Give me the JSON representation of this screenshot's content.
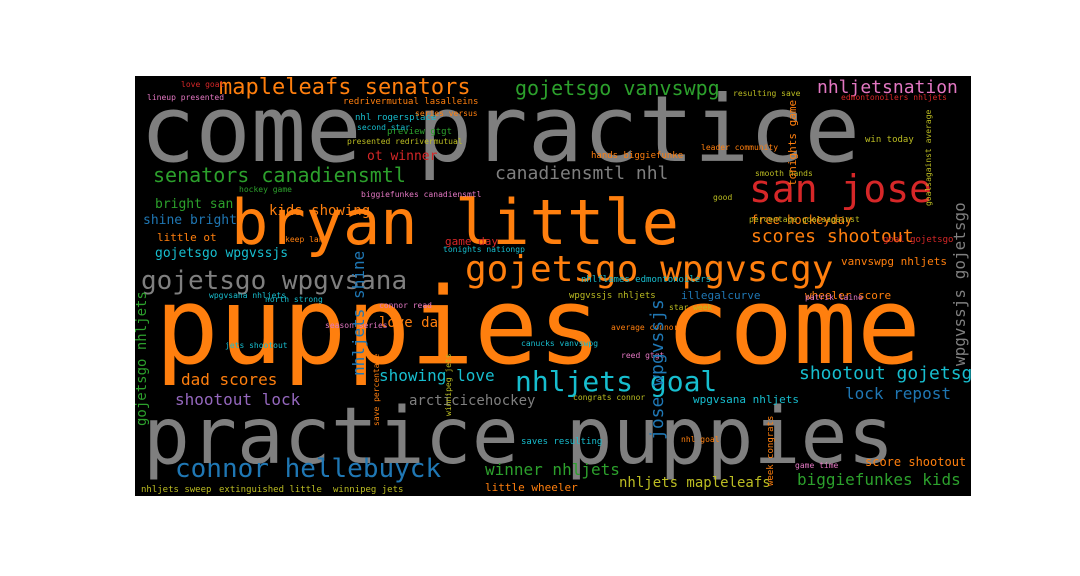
{
  "palette": {
    "gray": "#7f7f7f",
    "orange": "#ff7f0e",
    "red": "#d62728",
    "green": "#2ca02c",
    "teal": "#17becf",
    "blue": "#1f77b4",
    "pink": "#e377c2",
    "purple": "#9467bd",
    "olive": "#bcbd22",
    "brown": "#8c564b"
  },
  "words": {
    "come_practice": "come practice",
    "puppies_come": "puppies come",
    "practice_puppies": "practice puppies",
    "bryan_little": "bryan little",
    "san_jose": "san jose",
    "gojetsgo_wpgvscgy": "gojetsgo wpgvscgy",
    "mapleleafs_senators": "mapleleafs senators",
    "gojetsgo_vanvswpg": "gojetsgo vanvswpg",
    "nhljetsnation": "nhljetsnation",
    "senators_canadiensmtl": "senators canadiensmtl",
    "canadiensmtl_nhl": "canadiensmtl nhl",
    "gojetsgo_wpgvsana": "gojetsgo wpgvsana",
    "nhljets_goal": "nhljets goal",
    "connor_hellebuyck": "connor hellebuyck",
    "scores_shootout": "scores shootout",
    "kids_showing": "kids showing",
    "free_hockeyday": "free hockeyday",
    "shootout_gojetsgo": "shootout gojetsgo",
    "showing_love": "showing love",
    "love_dad": "love dad",
    "dad_scores": "dad scores",
    "shootout_lock": "shootout lock",
    "lock_repost": "lock repost",
    "winner_nhljets": "winner nhljets",
    "biggiefunkes_kids": "biggiefunkes kids",
    "nhljets_mapleleafs": "nhljets mapleleafs",
    "ot_winner": "ot winner",
    "bright_san": "bright san",
    "shine_bright": "shine bright",
    "gojetsgo_wpgvssjs": "gojetsgo wpgvssjs",
    "arcticicehockey": "arcticicehockey",
    "score_shootout": "score shootout",
    "wheeler_score": "wheeler score",
    "little_wheeler": "little wheeler",
    "vanvswpg_nhljets": "vanvswpg nhljets",
    "illegalcurve": "illegalcurve",
    "game_day": "game day",
    "redrivermutual_lasalleins": "redrivermutual lasalleins",
    "nhl_rogersplace": "nhl rogersplace",
    "presented_redrivermutual": "presented redrivermutual",
    "preview_gtgt": "preview gtgt",
    "edmontonoilers_nhljets": "edmontonoilers nhljets",
    "goal_gojetsgo": "goal gojetsgo",
    "winnipeg_jets": "winnipeg jets",
    "jose_wpgvssjs": "jose wpgvssjs",
    "nhljets_shine": "nhljets shine",
    "gojetsgo_nhljets": "gojetsgo nhljets",
    "wpgvssjs_gojetsgo": "wpgvssjs gojetsgo",
    "little_ot": "little ot",
    "extinguished_little": "extinguished little",
    "nhljets_sweep": "nhljets sweep",
    "saves_resulting": "saves resulting",
    "wpgvsana_nhljets": "wpgvsana nhljets",
    "tonights_game": "tonights game",
    "hands_biggiefunke": "hands biggiefunke",
    "lineup_presented": "lineup presented",
    "love_goal": "love goal",
    "reed_gtgt": "reed gtgt",
    "game_time": "game time",
    "win_today": "win today",
    "biggiefunkes_canadiensmtl": "biggiefunkes canadiensmtl",
    "season_series": "season series",
    "nhlflames_edmontonoilers": "nhlflames edmontonoilers",
    "connor_read": "connor read",
    "wpgvssjs_nhljets": "wpgvssjs nhljets",
    "wpgvsana_nhljets_2": "wpgvsana nhljets",
    "winnipeg_jets_2": "winnipeg jets",
    "second_star": "second star",
    "series_versus": "series versus",
    "leader_community": "leader community",
    "smooth_hands": "smooth hands",
    "tonights_nationgp": "tonights nationgp",
    "good": "good",
    "average_connor": "average connor",
    "star_week": "star week",
    "canucks_vanvswpg": "canucks vanvswpg",
    "patrik_laine": "patrik laine",
    "percentage_goalsagainst": "percentage goalsagainst",
    "goalsagainst_average": "goalsagainst average",
    "resulting_save": "resulting save",
    "save_percentage": "save percentage",
    "nhl_goal": "nhl goal",
    "keep_land": "keep land",
    "week_congrats": "week congrats",
    "congrats_connor": "congrats connor",
    "hockey_game": "hockey game",
    "north_strong": "north strong",
    "jets_shootout": "jets shootout"
  }
}
